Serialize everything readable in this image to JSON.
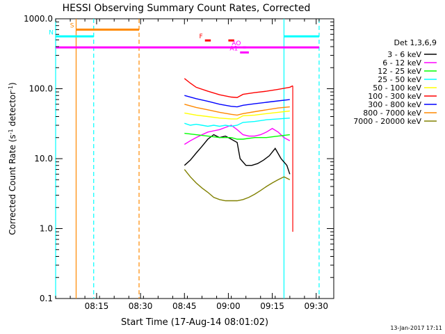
{
  "chart_data": {
    "type": "line",
    "title": "HESSI Observing Summary Count Rates, Corrected",
    "xlabel": "Start Time (17-Aug-14 08:01:02)",
    "ylabel": "Corrected Count Rate (s",
    "ylabel_sup": "-1",
    "ylabel_mid": " detector",
    "ylabel_sup2": "-1",
    "ylabel_end": ")",
    "footer_date": "13-Jan-2017 17:11",
    "yscale": "log",
    "ylim": [
      0.1,
      1000
    ],
    "xlim_min": [
      0,
      95
    ],
    "x_ticks": [
      {
        "min": 14,
        "label": "08:15"
      },
      {
        "min": 29,
        "label": "08:30"
      },
      {
        "min": 44,
        "label": "08:45"
      },
      {
        "min": 59,
        "label": "09:00"
      },
      {
        "min": 74,
        "label": "09:15"
      },
      {
        "min": 89,
        "label": "09:30"
      }
    ],
    "y_ticks": [
      {
        "value": 1000,
        "label": "1000.0"
      },
      {
        "value": 100,
        "label": "100.0"
      },
      {
        "value": 10,
        "label": "10.0"
      },
      {
        "value": 1,
        "label": "1.0"
      },
      {
        "value": 0.1,
        "label": "0.1"
      }
    ],
    "legend_title": "Det 1,3,6,9",
    "legend_position": "right",
    "series": [
      {
        "name": "3 - 6 keV",
        "color": "#000000",
        "x": [
          44,
          46,
          48,
          50,
          52,
          54,
          56,
          58,
          60,
          62,
          63,
          65,
          67,
          69,
          71,
          73,
          75,
          77,
          79,
          80
        ],
        "y": [
          8,
          9.5,
          12,
          15,
          19,
          22,
          20,
          21,
          19,
          17,
          10,
          8,
          8,
          8.5,
          9.5,
          11,
          14,
          10,
          8,
          6
        ]
      },
      {
        "name": "6 - 12 keV",
        "color": "#ff00ff",
        "x": [
          44,
          46,
          48,
          50,
          52,
          54,
          56,
          58,
          60,
          62,
          64,
          66,
          68,
          70,
          72,
          74,
          76,
          78,
          80
        ],
        "y": [
          16,
          18,
          20,
          22,
          24,
          25,
          26,
          28,
          30,
          26,
          22,
          21,
          21,
          22,
          24,
          27,
          24,
          20,
          18
        ]
      },
      {
        "name": "12 - 25 keV",
        "color": "#00ff00",
        "x": [
          44,
          48,
          52,
          56,
          60,
          62,
          64,
          68,
          72,
          76,
          80
        ],
        "y": [
          23,
          22,
          21,
          20,
          20,
          19,
          19,
          20,
          20,
          21,
          22
        ]
      },
      {
        "name": "25 - 50 keV",
        "color": "#00ffff",
        "x": [
          44,
          46,
          48,
          50,
          52,
          54,
          56,
          58,
          60,
          62,
          64,
          68,
          72,
          76,
          80
        ],
        "y": [
          32,
          30,
          31,
          30,
          29,
          30,
          29,
          30,
          29,
          30,
          33,
          34,
          36,
          37,
          38
        ]
      },
      {
        "name": "50 - 100 keV",
        "color": "#ffff00",
        "x": [
          44,
          48,
          52,
          56,
          60,
          62,
          64,
          68,
          72,
          76,
          80
        ],
        "y": [
          45,
          42,
          40,
          38,
          37,
          37,
          41,
          42,
          44,
          46,
          48
        ]
      },
      {
        "name": "100 - 300 keV",
        "color": "#ff0000",
        "x": [
          44,
          46,
          48,
          52,
          56,
          60,
          62,
          64,
          68,
          72,
          76,
          80,
          81
        ],
        "y": [
          140,
          120,
          105,
          92,
          82,
          76,
          75,
          83,
          88,
          92,
          98,
          105,
          110
        ]
      },
      {
        "name": "300 - 800 keV",
        "color": "#0000ff",
        "x": [
          44,
          48,
          52,
          56,
          60,
          62,
          64,
          68,
          72,
          76,
          80
        ],
        "y": [
          80,
          72,
          66,
          60,
          56,
          55,
          58,
          61,
          64,
          67,
          70
        ]
      },
      {
        "name": "800 - 7000 keV",
        "color": "#ff8800",
        "x": [
          44,
          48,
          52,
          56,
          60,
          62,
          64,
          68,
          72,
          76,
          80
        ],
        "y": [
          60,
          54,
          50,
          46,
          43,
          42,
          44,
          47,
          50,
          53,
          55
        ]
      },
      {
        "name": "7000 - 20000 keV",
        "color": "#808000",
        "x": [
          44,
          46,
          48,
          50,
          52,
          54,
          56,
          58,
          60,
          62,
          64,
          66,
          68,
          70,
          72,
          74,
          76,
          78,
          80
        ],
        "y": [
          7,
          5.5,
          4.5,
          3.8,
          3.3,
          2.8,
          2.6,
          2.5,
          2.5,
          2.5,
          2.6,
          2.8,
          3.1,
          3.5,
          4,
          4.5,
          5,
          5.5,
          5
        ]
      }
    ],
    "spike": {
      "color": "#ff0000",
      "x": 81,
      "y_low": 0.9,
      "y_high": 110
    },
    "vertical_lines": [
      {
        "x": 0,
        "color": "#00ffff",
        "style": "solid"
      },
      {
        "x": 7,
        "color": "#ff8800",
        "style": "solid"
      },
      {
        "x": 13,
        "color": "#00ffff",
        "style": "dashed"
      },
      {
        "x": 28.5,
        "color": "#ff8800",
        "style": "dashed"
      },
      {
        "x": 78,
        "color": "#00ffff",
        "style": "solid"
      },
      {
        "x": 90,
        "color": "#00ffff",
        "style": "dashed"
      }
    ],
    "flag_bars": [
      {
        "label": "S",
        "color": "#ff8800",
        "x0": 7,
        "x1": 28.5,
        "y": 700
      },
      {
        "label": "N",
        "color": "#00ffff",
        "x0": 0,
        "x1": 13,
        "y": 560
      },
      {
        "label": "",
        "color": "#00ffff",
        "x0": 78,
        "x1": 90,
        "y": 560
      },
      {
        "label": "",
        "color": "#ff00ff",
        "x0": 0,
        "x1": 90,
        "y": 390
      },
      {
        "label": "F",
        "color": "#ff0000",
        "x0": 51,
        "x1": 53,
        "y": 490
      },
      {
        "label": "",
        "color": "#ff0000",
        "x0": 59,
        "x1": 61,
        "y": 490
      },
      {
        "label": "AO",
        "color": "#ff00ff",
        "x0": 64,
        "x1": 65,
        "y": 390
      },
      {
        "label": "A1",
        "color": "#ff00ff",
        "x0": 63,
        "x1": 66,
        "y": 330
      }
    ]
  }
}
